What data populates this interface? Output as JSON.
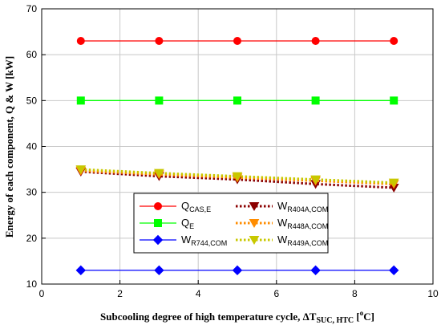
{
  "chart_data": {
    "type": "line",
    "title": "",
    "xlabel": {
      "main": "Subcooling degree of high temperature cycle, ΔT",
      "sub": "SUC, HTC",
      "unit_open": " [",
      "unit_sup": "o",
      "unit_close": "C]"
    },
    "ylabel": "Energy of each  component, Q & W [kW]",
    "xlim": [
      0,
      10
    ],
    "ylim": [
      10,
      70
    ],
    "xticks": [
      "0",
      "2",
      "4",
      "6",
      "8",
      "10"
    ],
    "yticks": [
      "10",
      "20",
      "30",
      "40",
      "50",
      "60",
      "70"
    ],
    "grid": true,
    "legend_position": "lower-center",
    "x": [
      1,
      3,
      5,
      7,
      9
    ],
    "series": [
      {
        "name": "Q",
        "sub": "CAS,E",
        "color": "#ff0000",
        "marker": "circle",
        "dash": false,
        "values": [
          63,
          63,
          63,
          63,
          63
        ]
      },
      {
        "name": "Q",
        "sub": "E",
        "color": "#00ff00",
        "marker": "square",
        "dash": false,
        "values": [
          50,
          50,
          50,
          50,
          50
        ]
      },
      {
        "name": "W",
        "sub": "R744,COM",
        "color": "#0000ff",
        "marker": "diamond",
        "dash": false,
        "values": [
          13,
          13,
          13,
          13,
          13
        ]
      },
      {
        "name": "W",
        "sub": "R404A,COM",
        "color": "#8b0000",
        "marker": "triangle-down",
        "dash": true,
        "values": [
          34.5,
          33.5,
          32.8,
          31.8,
          31.0
        ]
      },
      {
        "name": "W",
        "sub": "R448A,COM",
        "color": "#ff8c00",
        "marker": "triangle-down",
        "dash": true,
        "values": [
          34.7,
          33.9,
          33.2,
          32.5,
          31.8
        ]
      },
      {
        "name": "W",
        "sub": "R449A,COM",
        "color": "#c8c800",
        "marker": "triangle-down",
        "dash": true,
        "values": [
          35.0,
          34.2,
          33.5,
          32.8,
          32.1
        ]
      }
    ]
  }
}
